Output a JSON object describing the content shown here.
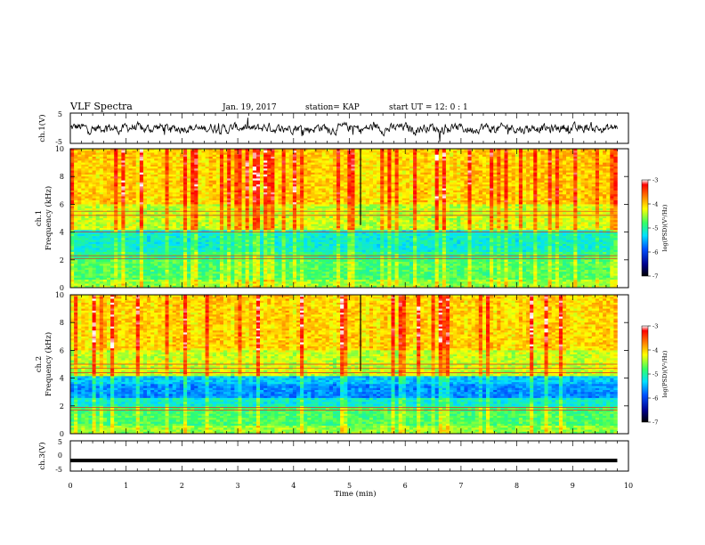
{
  "header": {
    "title": "VLF Spectra",
    "date": "Jan. 19, 2017",
    "station": "station= KAP",
    "start_time": "start UT =  12: 0  : 1"
  },
  "chart_data": [
    {
      "type": "line",
      "panel": "ch1-waveform",
      "ylabel": "ch.1(V)",
      "ylim": [
        -5,
        5
      ],
      "xlim": [
        0,
        10
      ],
      "y_ticks": [
        "5",
        "-5"
      ],
      "series": [
        {
          "description": "noisy waveform around 0 V",
          "color": "#000000"
        }
      ]
    },
    {
      "type": "heatmap",
      "panel": "ch1-spectrogram",
      "ylabel_1": "ch.1",
      "ylabel_2": "Frequency (kHz)",
      "ylim": [
        0,
        10
      ],
      "xlim": [
        0,
        9.8
      ],
      "y_ticks": [
        "0",
        "2",
        "4",
        "6",
        "8",
        "10"
      ],
      "colorbar": {
        "label": "log(PSD)(V²/Hz)",
        "range": [
          -7,
          -3
        ],
        "ticks": [
          "-3",
          "-4",
          "-5",
          "-6",
          "-7"
        ]
      }
    },
    {
      "type": "heatmap",
      "panel": "ch2-spectrogram",
      "ylabel_1": "ch.2",
      "ylabel_2": "Frequency (kHz)",
      "ylim": [
        0,
        10
      ],
      "xlim": [
        0,
        9.8
      ],
      "y_ticks": [
        "0",
        "2",
        "4",
        "6",
        "8",
        "10"
      ],
      "colorbar": {
        "label": "log(PSD)(V²/Hz)",
        "range": [
          -7,
          -3
        ],
        "ticks": [
          "-3",
          "-4",
          "-5",
          "-6",
          "-7"
        ]
      }
    },
    {
      "type": "line",
      "panel": "ch3-waveform",
      "ylabel": "ch.3(V)",
      "ylim": [
        -5,
        5
      ],
      "xlim": [
        0,
        10
      ],
      "y_ticks": [
        "5",
        "0",
        "-5"
      ],
      "series": [
        {
          "description": "flat line near -1.5 V",
          "value": -1.5,
          "color": "#000000"
        }
      ]
    }
  ],
  "x_axis": {
    "label": "Time (min)",
    "ticks": [
      "0",
      "1",
      "2",
      "3",
      "4",
      "5",
      "6",
      "7",
      "8",
      "9",
      "10"
    ],
    "range": [
      0,
      10
    ]
  }
}
